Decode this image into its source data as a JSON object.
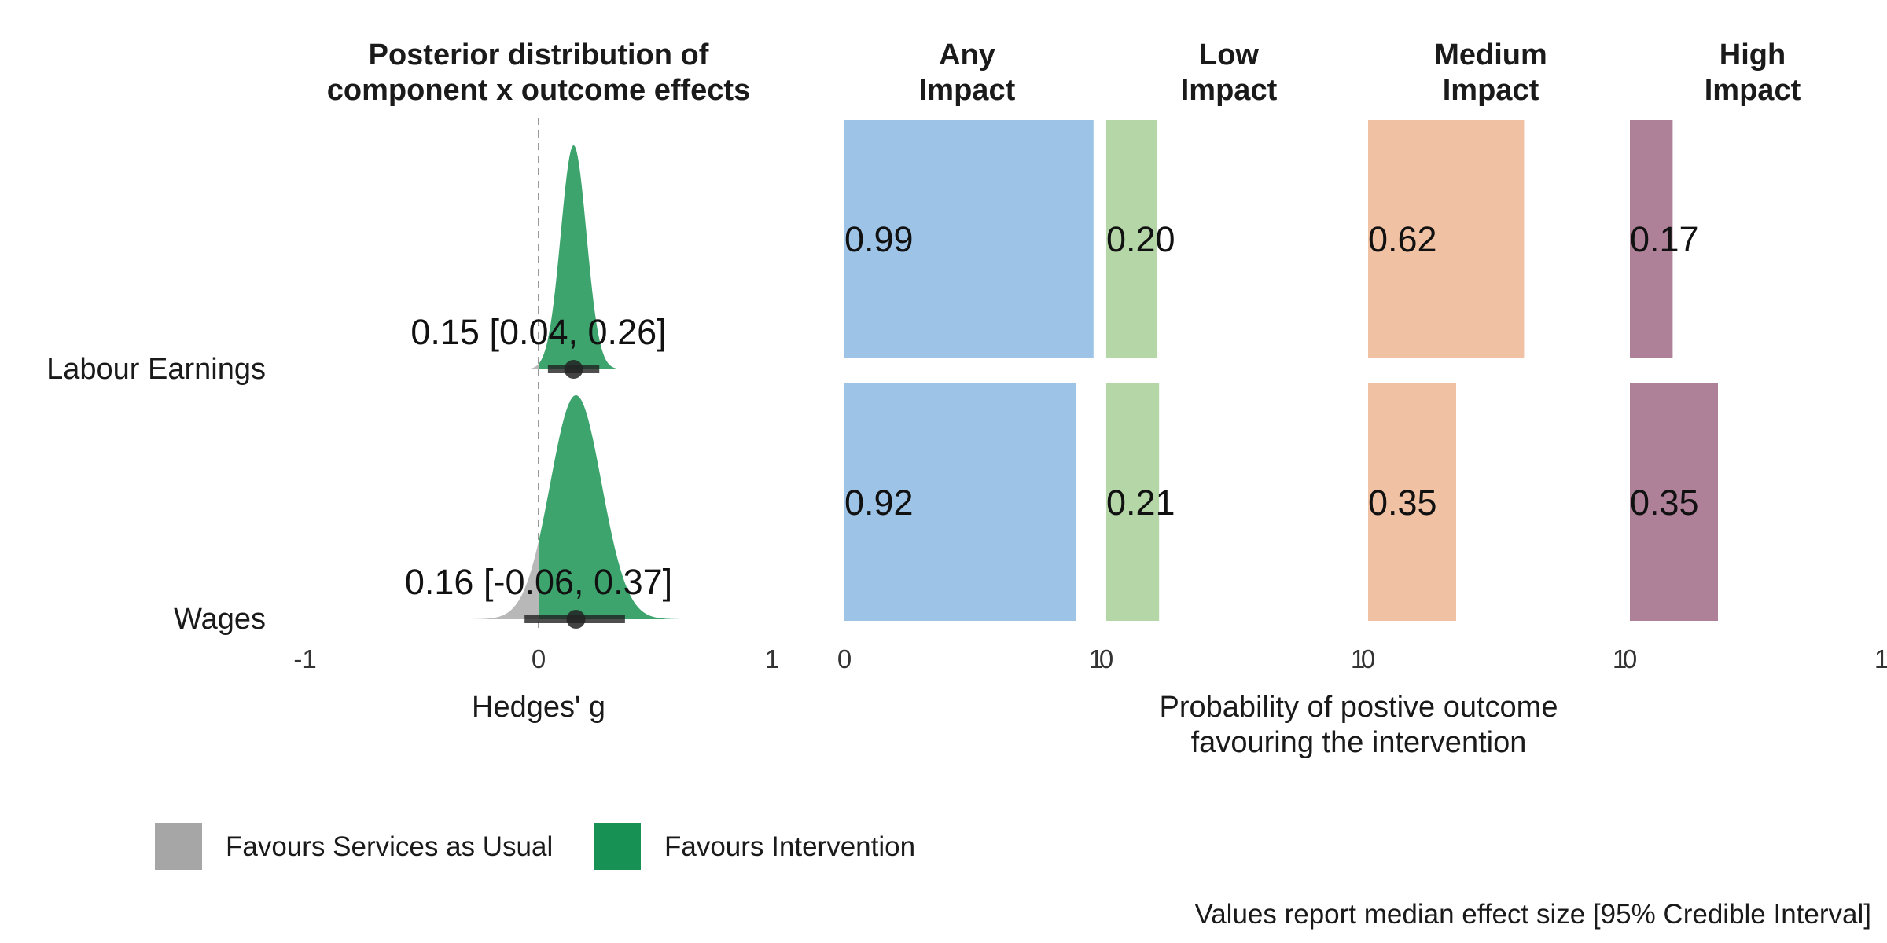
{
  "chart_data": {
    "type": "composite",
    "rows": [
      "Labour Earnings",
      "Wages"
    ],
    "left_panel": {
      "title_lines": [
        "Posterior distribution of",
        "component x outcome effects"
      ],
      "xlabel": "Hedges' g",
      "xlim": [
        -1,
        1
      ],
      "ticks": [
        "-1",
        "0",
        "1"
      ],
      "reference_line": 0,
      "estimates": [
        {
          "row": "Labour Earnings",
          "median": 0.15,
          "lower": 0.04,
          "upper": 0.26,
          "label": "0.15 [0.04, 0.26]",
          "sd": 0.055
        },
        {
          "row": "Wages",
          "median": 0.16,
          "lower": -0.06,
          "upper": 0.37,
          "label": "0.16 [-0.06, 0.37]",
          "sd": 0.11
        }
      ]
    },
    "right_panels": {
      "xlabel_lines": [
        "Probability of postive outcome",
        "favouring the intervention"
      ],
      "panels": [
        {
          "title_lines": [
            "Any",
            "Impact"
          ],
          "color": "#9DC3E6",
          "ticks": [
            "0",
            "1"
          ],
          "values": [
            0.99,
            0.92
          ],
          "labels": [
            "0.99",
            "0.92"
          ]
        },
        {
          "title_lines": [
            "Low",
            "Impact"
          ],
          "color": "#B5D7A8",
          "ticks": [
            "0",
            "1"
          ],
          "values": [
            0.2,
            0.21
          ],
          "labels": [
            "0.20",
            "0.21"
          ]
        },
        {
          "title_lines": [
            "Medium",
            "Impact"
          ],
          "color": "#F0C2A3",
          "ticks": [
            "0",
            "1"
          ],
          "values": [
            0.62,
            0.35
          ],
          "labels": [
            "0.62",
            "0.35"
          ]
        },
        {
          "title_lines": [
            "High",
            "Impact"
          ],
          "color": "#AE8199",
          "ticks": [
            "0",
            "1"
          ],
          "values": [
            0.17,
            0.35
          ],
          "labels": [
            "0.17",
            "0.35"
          ]
        }
      ]
    },
    "legend": {
      "placement": "bottom-left",
      "items": [
        {
          "label": "Favours Services as Usual",
          "color": "#A6A6A6"
        },
        {
          "label": "Favours Intervention",
          "color": "#179154"
        }
      ]
    },
    "caption": "Values report median effect size [95% Credible Interval]",
    "colors": {
      "favour_intervention": "#3DA46E",
      "favour_usual": "#B8B8B8",
      "interval": "#222222"
    }
  }
}
